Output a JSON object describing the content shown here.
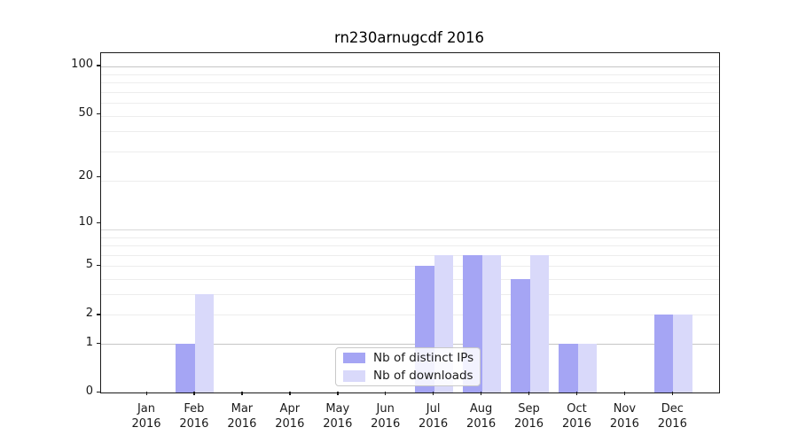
{
  "chart_data": {
    "type": "bar",
    "title": "rn230arnugcdf 2016",
    "months": [
      "Jan",
      "Feb",
      "Mar",
      "Apr",
      "May",
      "Jun",
      "Jul",
      "Aug",
      "Sep",
      "Oct",
      "Nov",
      "Dec"
    ],
    "year_label": "2016",
    "series": [
      {
        "name": "Nb of distinct IPs",
        "color": "#a5a5f4",
        "values": [
          0,
          1,
          0,
          0,
          0,
          0,
          5,
          6,
          4,
          1,
          0,
          2
        ]
      },
      {
        "name": "Nb of downloads",
        "color": "#d9d9fa",
        "values": [
          0,
          3,
          0,
          0,
          0,
          0,
          6,
          6,
          6,
          1,
          0,
          2
        ]
      }
    ],
    "yscale": "log10(1+v)",
    "yticks": [
      0,
      1,
      2,
      5,
      10,
      20,
      50,
      100
    ],
    "ylim": [
      0,
      120
    ],
    "grid": true,
    "legend_position": "lower center",
    "colors": {
      "grid_minor": "#ededed",
      "grid_medium": "#d9d9d9",
      "grid_major": "#c6c6c6",
      "axis": "#1a1a1a"
    }
  }
}
